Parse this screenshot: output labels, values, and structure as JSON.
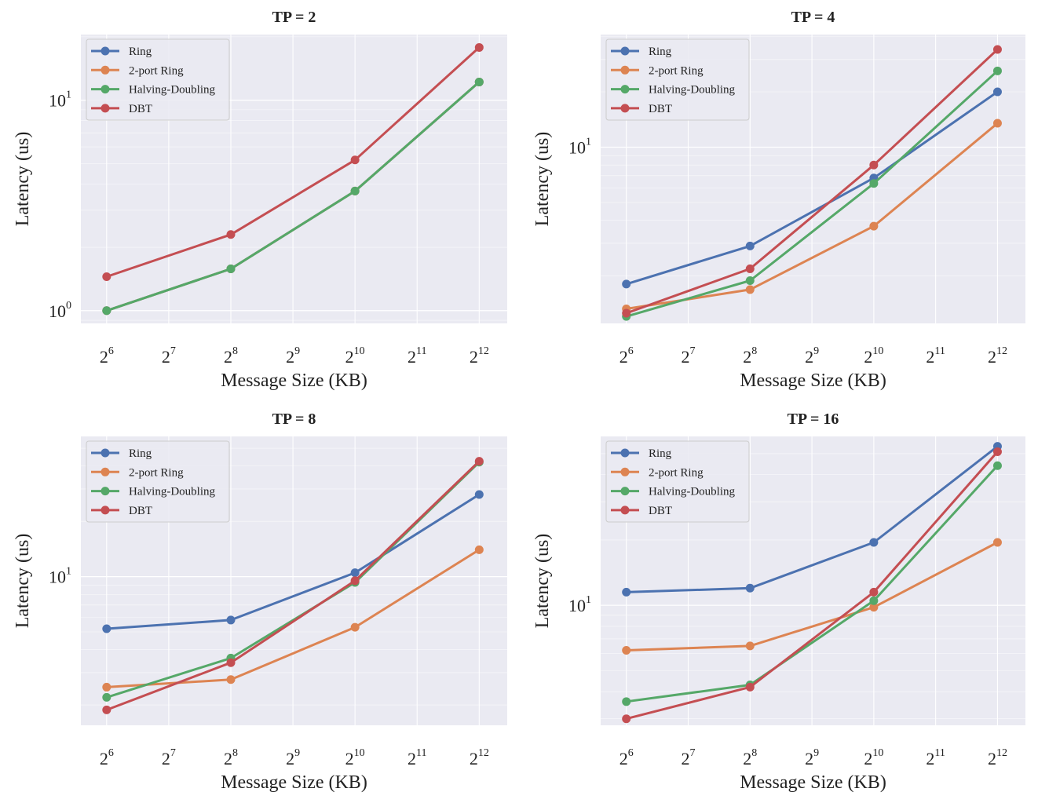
{
  "colors": {
    "Ring": "#4c72b0",
    "2-port Ring": "#dd8452",
    "Halving-Doubling": "#55a868",
    "DBT": "#c44e52",
    "panel_bg": "#eaeaf2",
    "grid": "#ffffff"
  },
  "chart_data": [
    {
      "type": "line",
      "title": "TP = 2",
      "xlabel": "Message Size (KB)",
      "ylabel": "Latency (us)",
      "x_scale": "log2",
      "y_scale": "log10",
      "x": [
        64,
        256,
        1024,
        4096
      ],
      "xlim": [
        48,
        5600
      ],
      "ylim": [
        0.87,
        20.5
      ],
      "x_ticks": [
        {
          "base": "2",
          "exp": "6"
        },
        {
          "base": "2",
          "exp": "7"
        },
        {
          "base": "2",
          "exp": "8"
        },
        {
          "base": "2",
          "exp": "9"
        },
        {
          "base": "2",
          "exp": "10"
        },
        {
          "base": "2",
          "exp": "11"
        },
        {
          "base": "2",
          "exp": "12"
        }
      ],
      "y_ticks": [
        {
          "value": 1,
          "base": "10",
          "exp": "0"
        },
        {
          "value": 10,
          "base": "10",
          "exp": "1"
        }
      ],
      "grid": true,
      "legend": "top-left",
      "series": [
        {
          "name": "Ring",
          "values": [
            1.0,
            1.58,
            3.7,
            12.2
          ]
        },
        {
          "name": "2-port Ring",
          "values": [
            1.0,
            1.58,
            3.7,
            12.2
          ]
        },
        {
          "name": "Halving-Doubling",
          "values": [
            1.0,
            1.58,
            3.7,
            12.2
          ]
        },
        {
          "name": "DBT",
          "values": [
            1.45,
            2.3,
            5.2,
            17.8
          ]
        }
      ]
    },
    {
      "type": "line",
      "title": "TP = 4",
      "xlabel": "Message Size (KB)",
      "ylabel": "Latency (us)",
      "x_scale": "log2",
      "y_scale": "log10",
      "x": [
        64,
        256,
        1024,
        4096
      ],
      "xlim": [
        48,
        5600
      ],
      "ylim": [
        1.1,
        41.0
      ],
      "x_ticks": [
        {
          "base": "2",
          "exp": "6"
        },
        {
          "base": "2",
          "exp": "7"
        },
        {
          "base": "2",
          "exp": "8"
        },
        {
          "base": "2",
          "exp": "9"
        },
        {
          "base": "2",
          "exp": "10"
        },
        {
          "base": "2",
          "exp": "11"
        },
        {
          "base": "2",
          "exp": "12"
        }
      ],
      "y_ticks": [
        {
          "value": 10,
          "base": "10",
          "exp": "1"
        }
      ],
      "grid": true,
      "legend": "top-left",
      "series": [
        {
          "name": "Ring",
          "values": [
            1.8,
            2.9,
            6.8,
            20.0
          ]
        },
        {
          "name": "2-port Ring",
          "values": [
            1.32,
            1.68,
            3.72,
            13.5
          ]
        },
        {
          "name": "Halving-Doubling",
          "values": [
            1.2,
            1.88,
            6.35,
            26.0
          ]
        },
        {
          "name": "DBT",
          "values": [
            1.25,
            2.18,
            8.0,
            34.0
          ]
        }
      ]
    },
    {
      "type": "line",
      "title": "TP = 8",
      "xlabel": "Message Size (KB)",
      "ylabel": "Latency (us)",
      "x_scale": "log2",
      "y_scale": "log10",
      "x": [
        64,
        256,
        1024,
        4096
      ],
      "xlim": [
        48,
        5600
      ],
      "ylim": [
        1.55,
        58.0
      ],
      "x_ticks": [
        {
          "base": "2",
          "exp": "6"
        },
        {
          "base": "2",
          "exp": "7"
        },
        {
          "base": "2",
          "exp": "8"
        },
        {
          "base": "2",
          "exp": "9"
        },
        {
          "base": "2",
          "exp": "10"
        },
        {
          "base": "2",
          "exp": "11"
        },
        {
          "base": "2",
          "exp": "12"
        }
      ],
      "y_ticks": [
        {
          "value": 10,
          "base": "10",
          "exp": "1"
        }
      ],
      "grid": true,
      "legend": "top-left",
      "series": [
        {
          "name": "Ring",
          "values": [
            5.2,
            5.8,
            10.5,
            28.0
          ]
        },
        {
          "name": "2-port Ring",
          "values": [
            2.5,
            2.75,
            5.3,
            14.0
          ]
        },
        {
          "name": "Halving-Doubling",
          "values": [
            2.2,
            3.6,
            9.3,
            42.0
          ]
        },
        {
          "name": "DBT",
          "values": [
            1.88,
            3.4,
            9.5,
            42.5
          ]
        }
      ]
    },
    {
      "type": "line",
      "title": "TP = 16",
      "xlabel": "Message Size (KB)",
      "ylabel": "Latency (us)",
      "x_scale": "log2",
      "y_scale": "log10",
      "x": [
        64,
        256,
        1024,
        4096
      ],
      "xlim": [
        48,
        5600
      ],
      "ylim": [
        2.8,
        60.0
      ],
      "x_ticks": [
        {
          "base": "2",
          "exp": "6"
        },
        {
          "base": "2",
          "exp": "7"
        },
        {
          "base": "2",
          "exp": "8"
        },
        {
          "base": "2",
          "exp": "9"
        },
        {
          "base": "2",
          "exp": "10"
        },
        {
          "base": "2",
          "exp": "11"
        },
        {
          "base": "2",
          "exp": "12"
        }
      ],
      "y_ticks": [
        {
          "value": 10,
          "base": "10",
          "exp": "1"
        }
      ],
      "grid": true,
      "legend": "top-left",
      "series": [
        {
          "name": "Ring",
          "values": [
            11.5,
            12.0,
            19.5,
            54.0
          ]
        },
        {
          "name": "2-port Ring",
          "values": [
            6.2,
            6.5,
            9.8,
            19.5
          ]
        },
        {
          "name": "Halving-Doubling",
          "values": [
            3.6,
            4.3,
            10.5,
            44.0
          ]
        },
        {
          "name": "DBT",
          "values": [
            3.0,
            4.2,
            11.5,
            51.0
          ]
        }
      ]
    }
  ]
}
